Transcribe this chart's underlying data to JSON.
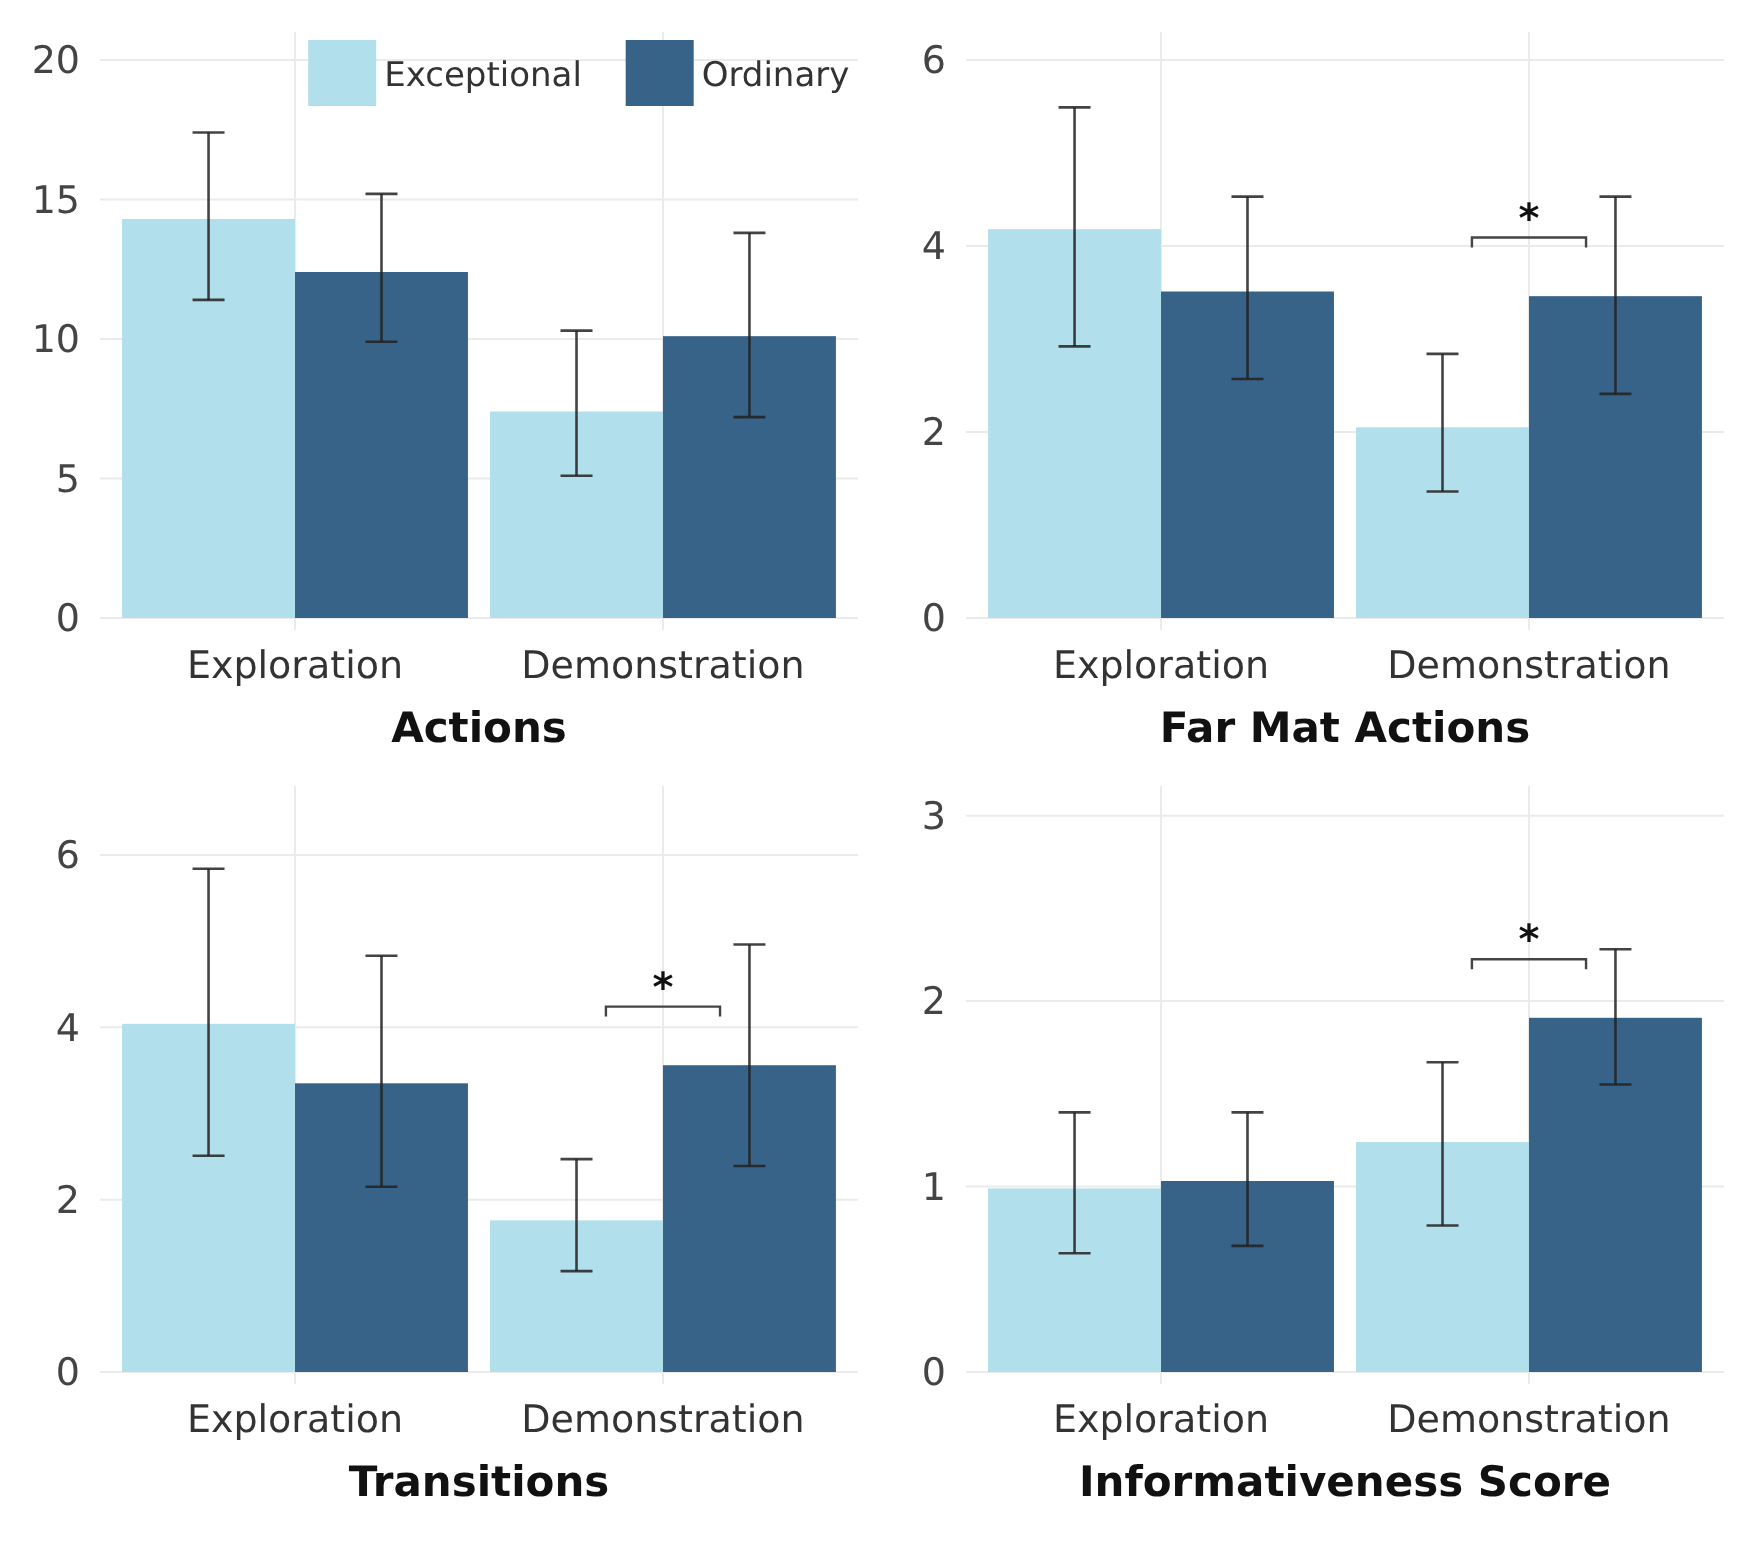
{
  "chart_data": [
    {
      "type": "bar",
      "xlabel": "Actions",
      "categories": [
        "Exploration",
        "Demonstration"
      ],
      "legend": "top right",
      "grid": true,
      "ylim": [
        0,
        21
      ],
      "yticks": [
        0,
        5,
        10,
        15,
        20
      ],
      "series": [
        {
          "name": "Exceptional",
          "color": "#b2dfec",
          "values": [
            14.3,
            7.4
          ],
          "errors": [
            [
              11.4,
              17.4
            ],
            [
              5.1,
              10.3
            ]
          ]
        },
        {
          "name": "Ordinary",
          "color": "#376389",
          "values": [
            12.4,
            10.1
          ],
          "errors": [
            [
              9.9,
              15.2
            ],
            [
              7.2,
              13.8
            ]
          ]
        }
      ]
    },
    {
      "type": "bar",
      "xlabel": "Far Mat Actions",
      "categories": [
        "Exploration",
        "Demonstration"
      ],
      "grid": true,
      "ylim": [
        0,
        6.3
      ],
      "yticks": [
        0,
        2,
        4,
        6
      ],
      "annotations": [
        "*"
      ],
      "series": [
        {
          "color": "#b2dfec",
          "values": [
            4.18,
            2.05
          ],
          "errors": [
            [
              2.92,
              5.49
            ],
            [
              1.36,
              2.84
            ]
          ]
        },
        {
          "color": "#376389",
          "values": [
            3.51,
            3.46
          ],
          "errors": [
            [
              2.57,
              4.53
            ],
            [
              2.41,
              4.53
            ]
          ]
        }
      ]
    },
    {
      "type": "bar",
      "xlabel": "Transitions",
      "categories": [
        "Exploration",
        "Demonstration"
      ],
      "grid": true,
      "ylim": [
        0,
        6.8
      ],
      "yticks": [
        0,
        2,
        4,
        6
      ],
      "annotations": [
        "*"
      ],
      "series": [
        {
          "color": "#b2dfec",
          "values": [
            4.04,
            1.76
          ],
          "errors": [
            [
              2.51,
              5.84
            ],
            [
              1.17,
              2.47
            ]
          ]
        },
        {
          "color": "#376389",
          "values": [
            3.35,
            3.56
          ],
          "errors": [
            [
              2.15,
              4.83
            ],
            [
              2.39,
              4.96
            ]
          ]
        }
      ]
    },
    {
      "type": "bar",
      "xlabel": "Informativeness Score",
      "categories": [
        "Exploration",
        "Demonstration"
      ],
      "grid": true,
      "ylim": [
        0,
        3.16
      ],
      "yticks": [
        0,
        1,
        2,
        3
      ],
      "annotations": [
        "*"
      ],
      "series": [
        {
          "color": "#b2dfec",
          "values": [
            0.99,
            1.24
          ],
          "errors": [
            [
              0.64,
              1.4
            ],
            [
              0.79,
              1.67
            ]
          ]
        },
        {
          "color": "#376389",
          "values": [
            1.03,
            1.91
          ],
          "errors": [
            [
              0.68,
              1.4
            ],
            [
              1.55,
              2.28
            ]
          ]
        }
      ]
    }
  ]
}
